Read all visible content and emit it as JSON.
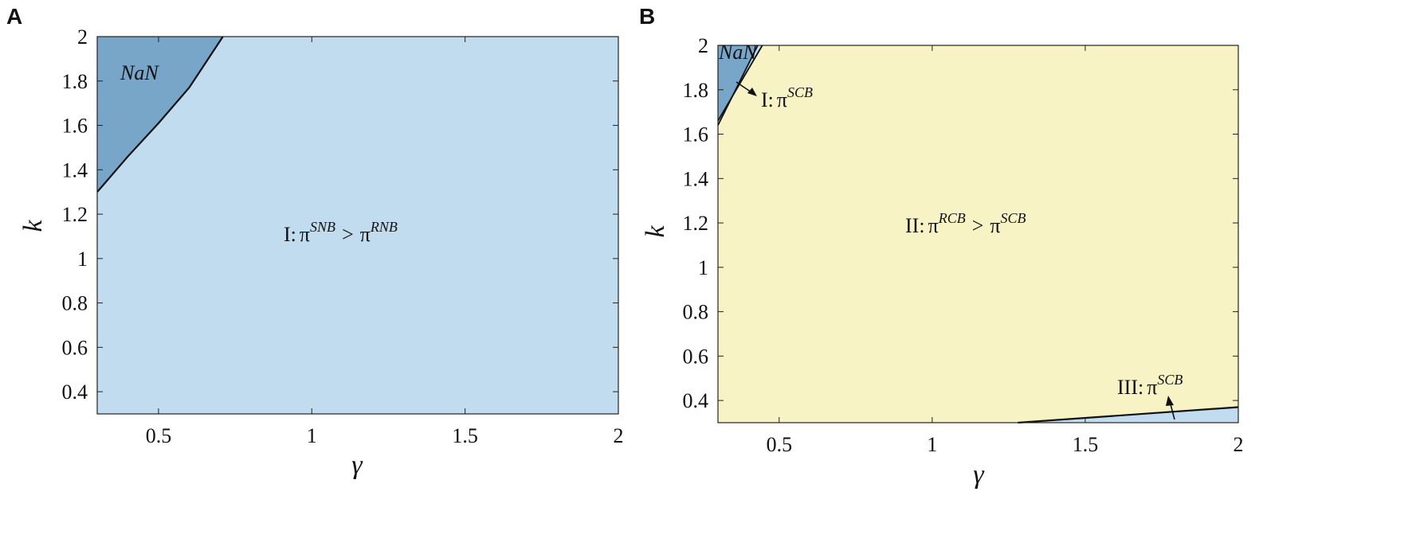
{
  "colors": {
    "light_blue": "#c2dcef",
    "dark_blue": "#77a6c9",
    "yellow": "#f8f3c4",
    "boundary": "#111111"
  },
  "chart_data": [
    {
      "panel": "A",
      "type": "area",
      "xlabel": "γ",
      "ylabel": "k",
      "xlim": [
        0.3,
        2
      ],
      "ylim": [
        0.3,
        2
      ],
      "xticks": [
        "0.5",
        "1",
        "1.5",
        "2"
      ],
      "xtick_values": [
        0.5,
        1,
        1.5,
        2
      ],
      "yticks": [
        "0.4",
        "0.6",
        "0.8",
        "1",
        "1.2",
        "1.4",
        "1.6",
        "1.8",
        "2"
      ],
      "ytick_values": [
        0.4,
        0.6,
        0.8,
        1,
        1.2,
        1.4,
        1.6,
        1.8,
        2
      ],
      "grid": false,
      "regions": [
        {
          "name": "NaN",
          "label_pos": [
            0.45,
            1.83
          ],
          "boundary": [
            [
              0.3,
              1.3
            ],
            [
              0.4,
              1.46
            ],
            [
              0.5,
              1.61
            ],
            [
              0.6,
              1.77
            ],
            [
              0.71,
              2.0
            ]
          ],
          "side": "upper-left"
        },
        {
          "name": "I",
          "label": "I: π^{SNB} > π^{RNB}",
          "label_pos": [
            1.13,
            1.22
          ],
          "side": "rest"
        }
      ],
      "annotations": [
        {
          "prefix": "I",
          "text": "π",
          "sup_a": "SNB",
          "rel": ">",
          "text2": "π",
          "sup_b": "RNB"
        },
        {
          "text": "NaN"
        }
      ]
    },
    {
      "panel": "B",
      "type": "area",
      "xlabel": "γ",
      "ylabel": "k",
      "xlim": [
        0.3,
        2
      ],
      "ylim": [
        0.3,
        2
      ],
      "xticks": [
        "0.5",
        "1",
        "1.5",
        "2"
      ],
      "xtick_values": [
        0.5,
        1,
        1.5,
        2
      ],
      "yticks": [
        "0.4",
        "0.6",
        "0.8",
        "1",
        "1.2",
        "1.4",
        "1.6",
        "1.8",
        "2"
      ],
      "ytick_values": [
        0.4,
        0.6,
        0.8,
        1,
        1.2,
        1.4,
        1.6,
        1.8,
        2
      ],
      "grid": false,
      "regions": [
        {
          "name": "NaN",
          "boundary": [
            [
              0.3,
              1.64
            ],
            [
              0.43,
              2.0
            ]
          ],
          "side": "upper-left"
        },
        {
          "name": "I",
          "label": "I: π^{SCB}",
          "boundary": [
            [
              0.3,
              1.66
            ],
            [
              0.445,
              2.0
            ]
          ]
        },
        {
          "name": "II",
          "label": "II: π^{RCB} > π^{SCB}",
          "label_pos": [
            1.15,
            1.18
          ]
        },
        {
          "name": "III",
          "label": "III: π^{SCB}",
          "boundary": [
            [
              1.28,
              0.3
            ],
            [
              2.0,
              0.37
            ]
          ],
          "side": "lower-right"
        }
      ],
      "annotations": [
        {
          "prefix": "II",
          "text": "π",
          "sup_a": "RCB",
          "rel": ">",
          "text2": "π",
          "sup_b": "SCB"
        },
        {
          "prefix": "I",
          "text": "π",
          "sup_a": "SCB"
        },
        {
          "prefix": "III",
          "text": "π",
          "sup_a": "SCB"
        },
        {
          "text": "NaN"
        }
      ]
    }
  ]
}
